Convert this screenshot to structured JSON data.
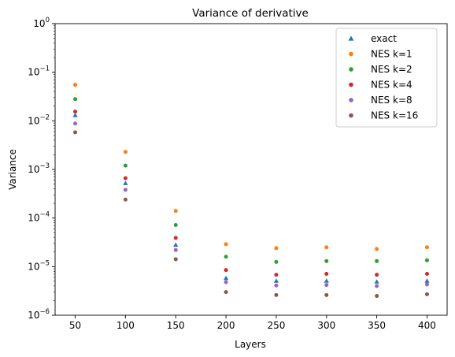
{
  "chart_data": {
    "type": "scatter",
    "title": "Variance of derivative",
    "xlabel": "Layers",
    "ylabel": "Variance",
    "yscale": "log",
    "xlim": [
      30,
      420
    ],
    "ylim": [
      1e-06,
      1
    ],
    "xticks": [
      50,
      100,
      150,
      200,
      250,
      300,
      350,
      400
    ],
    "yticks": [
      {
        "value": 1e-06,
        "base": "10",
        "exp": "−6"
      },
      {
        "value": 1e-05,
        "base": "10",
        "exp": "−5"
      },
      {
        "value": 0.0001,
        "base": "10",
        "exp": "−4"
      },
      {
        "value": 0.001,
        "base": "10",
        "exp": "−3"
      },
      {
        "value": 0.01,
        "base": "10",
        "exp": "−2"
      },
      {
        "value": 0.1,
        "base": "10",
        "exp": "−1"
      },
      {
        "value": 1,
        "base": "10",
        "exp": "0"
      }
    ],
    "grid": false,
    "legend_position": "top-right",
    "x": [
      50,
      100,
      150,
      200,
      250,
      300,
      350,
      400
    ],
    "series": [
      {
        "name": "exact",
        "marker": "triangle",
        "color": "#1f77b4",
        "values": [
          0.013,
          0.00052,
          2.8e-05,
          5.8e-06,
          5.1e-06,
          5.1e-06,
          4.9e-06,
          5.1e-06
        ]
      },
      {
        "name": "NES k=1",
        "marker": "circle",
        "color": "#ff7f0e",
        "values": [
          0.055,
          0.0023,
          0.00014,
          2.9e-05,
          2.4e-05,
          2.5e-05,
          2.3e-05,
          2.5e-05
        ]
      },
      {
        "name": "NES k=2",
        "marker": "circle",
        "color": "#2ca02c",
        "values": [
          0.028,
          0.0012,
          7.2e-05,
          1.6e-05,
          1.25e-05,
          1.3e-05,
          1.3e-05,
          1.35e-05
        ]
      },
      {
        "name": "NES k=4",
        "marker": "circle",
        "color": "#d62728",
        "values": [
          0.0155,
          0.00066,
          3.9e-05,
          8.5e-06,
          6.8e-06,
          7.1e-06,
          6.8e-06,
          7.1e-06
        ]
      },
      {
        "name": "NES k=8",
        "marker": "circle",
        "color": "#9467bd",
        "values": [
          0.0088,
          0.00038,
          2.2e-05,
          4.8e-06,
          4.1e-06,
          4.2e-06,
          4e-06,
          4.3e-06
        ]
      },
      {
        "name": "NES k=16",
        "marker": "circle",
        "color": "#8c564b",
        "values": [
          0.0058,
          0.00024,
          1.42e-05,
          3e-06,
          2.6e-06,
          2.6e-06,
          2.5e-06,
          2.7e-06
        ]
      }
    ]
  }
}
